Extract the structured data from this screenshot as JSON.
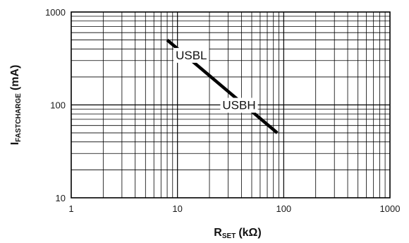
{
  "chart_data": {
    "type": "line",
    "x_scale": "log",
    "y_scale": "log",
    "xlim": [
      1,
      1000
    ],
    "ylim": [
      10,
      1000
    ],
    "grid": true,
    "x_ticks": [
      "1",
      "10",
      "100",
      "1000"
    ],
    "y_ticks": [
      "10",
      "100",
      "1000"
    ],
    "xlabel_main": "R",
    "xlabel_sub": "SET",
    "xlabel_unit": "(kΩ)",
    "ylabel_main": "I",
    "ylabel_sub": "FASTCHARGE",
    "ylabel_unit": "(mA)",
    "series": [
      {
        "x": [
          8,
          87
        ],
        "y": [
          500,
          50
        ]
      }
    ],
    "annotations": [
      {
        "text": "USBL",
        "x": 13.5,
        "y": 310
      },
      {
        "text": "USBH",
        "x": 38,
        "y": 90
      }
    ]
  }
}
